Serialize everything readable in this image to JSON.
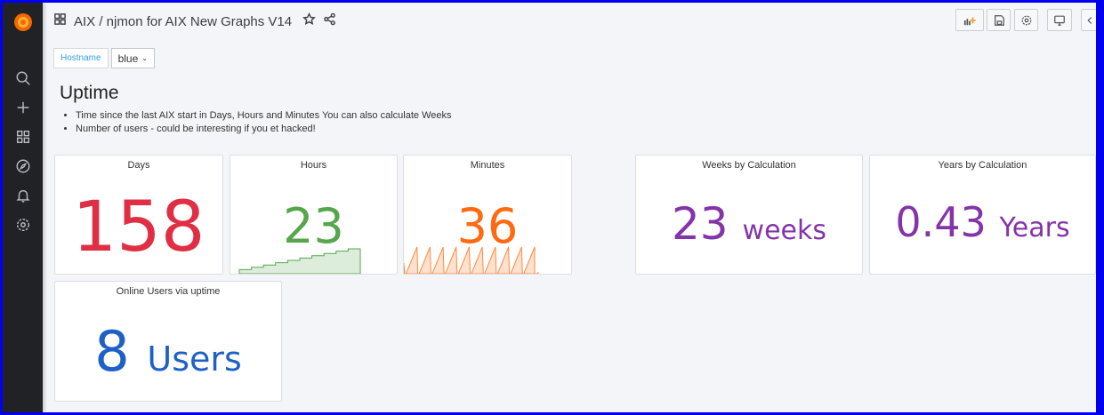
{
  "header": {
    "title": "AIX / njmon for AIX New Graphs V14",
    "icons": [
      "dashboard-grid-icon",
      "star-icon",
      "share-icon"
    ]
  },
  "toolbar": {
    "buttons": [
      "add-panel",
      "save",
      "settings",
      "tv-mode",
      "collapse"
    ]
  },
  "variables": {
    "hostname_label": "Hostname",
    "hostname_value": "blue"
  },
  "text_panel": {
    "title": "Uptime",
    "bullets": [
      "Time since the last AIX start in Days, Hours and Minutes You can also calculate Weeks",
      "Number of users - could be interesting if you et hacked!"
    ]
  },
  "panels": {
    "days": {
      "title": "Days",
      "value": "158",
      "color": "#e02f44"
    },
    "hours": {
      "title": "Hours",
      "value": "23",
      "color": "#56a64b",
      "spark": [
        14,
        15,
        16,
        17,
        18,
        19,
        20,
        21,
        22,
        23
      ]
    },
    "minutes": {
      "title": "Minutes",
      "value": "36",
      "color": "#ff6a10"
    },
    "weeks": {
      "title": "Weeks by Calculation",
      "value": "23",
      "unit": "weeks",
      "color": "#8434a8"
    },
    "years": {
      "title": "Years by Calculation",
      "value": "0.43",
      "unit": "Years",
      "color": "#8434a8"
    },
    "users": {
      "title": "Online Users via uptime",
      "value": "8",
      "unit": "Users",
      "color": "#1f60c4"
    }
  }
}
